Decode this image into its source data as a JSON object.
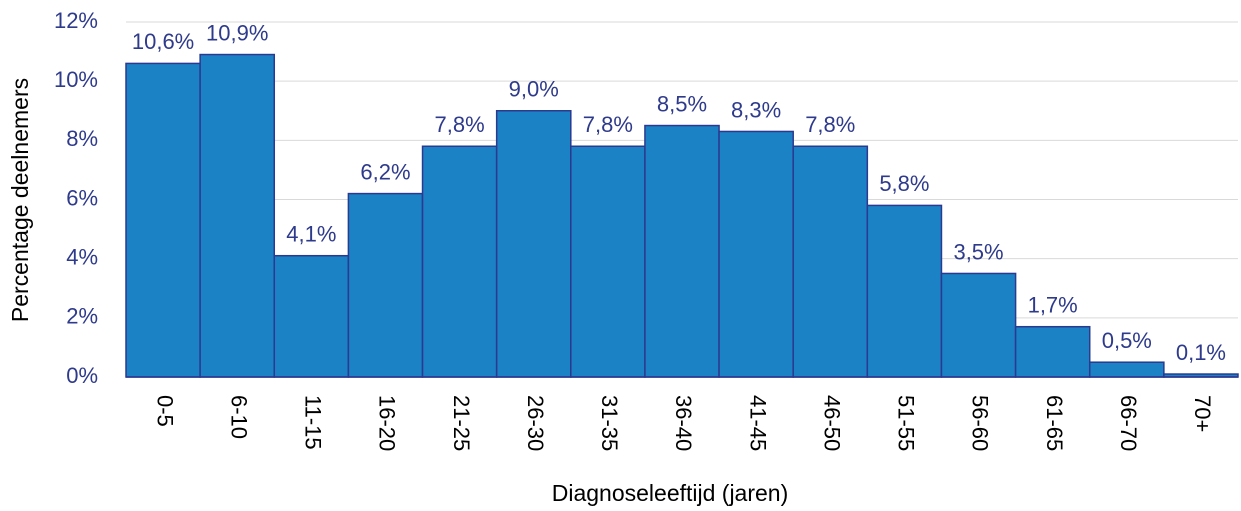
{
  "chart_data": {
    "type": "bar",
    "x_label": "Diagnoseleeftijd (jaren)",
    "y_label": "Percentage deelnemers",
    "categories": [
      "0-5",
      "6-10",
      "11-15",
      "16-20",
      "21-25",
      "26-30",
      "31-35",
      "36-40",
      "41-45",
      "46-50",
      "51-55",
      "56-60",
      "61-65",
      "66-70",
      "70+"
    ],
    "values": [
      10.6,
      10.9,
      4.1,
      6.2,
      7.8,
      9.0,
      7.8,
      8.5,
      8.3,
      7.8,
      5.8,
      3.5,
      1.7,
      0.5,
      0.1
    ],
    "value_labels": [
      "10,6%",
      "10,9%",
      "4,1%",
      "6,2%",
      "7,8%",
      "9,0%",
      "7,8%",
      "8,5%",
      "8,3%",
      "7,8%",
      "5,8%",
      "3,5%",
      "1,7%",
      "0,5%",
      "0,1%"
    ],
    "color": "#1b82c5",
    "ylim": [
      0,
      12
    ],
    "yticks": [
      {
        "value": 0,
        "label": "0%"
      },
      {
        "value": 2,
        "label": "2%"
      },
      {
        "value": 4,
        "label": "4%"
      },
      {
        "value": 6,
        "label": "6%"
      },
      {
        "value": 8,
        "label": "8%"
      },
      {
        "value": 10,
        "label": "10%"
      },
      {
        "value": 12,
        "label": "12%"
      }
    ],
    "grid": true
  }
}
